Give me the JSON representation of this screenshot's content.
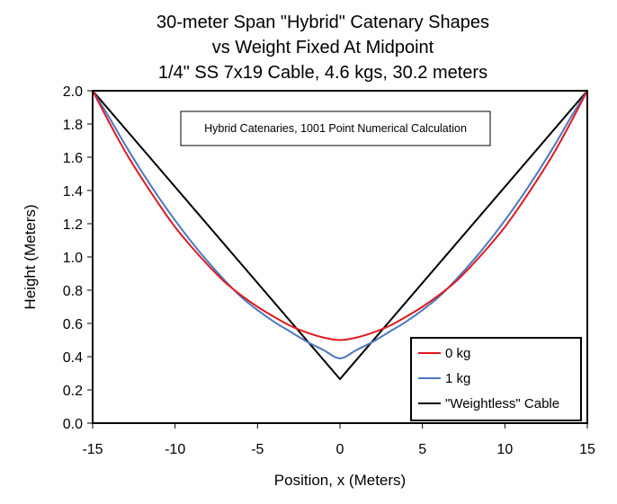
{
  "chart_data": {
    "type": "line",
    "title_lines": [
      "30-meter Span \"Hybrid\" Catenary Shapes",
      "vs Weight Fixed At Midpoint",
      "1/4\" SS 7x19 Cable, 4.6 kgs, 30.2 meters"
    ],
    "xlabel": "Position, x (Meters)",
    "ylabel": "Height (Meters)",
    "xlim": [
      -15,
      15
    ],
    "ylim": [
      0,
      2.0
    ],
    "x_ticks": [
      "-15",
      "-10",
      "-5",
      "0",
      "5",
      "10",
      "15"
    ],
    "y_ticks": [
      "0.0",
      "0.2",
      "0.4",
      "0.6",
      "0.8",
      "1.0",
      "1.2",
      "1.4",
      "1.6",
      "1.8",
      "2.0"
    ],
    "grid": false,
    "annotation": "Hybrid Catenaries, 1001 Point Numerical Calculation",
    "legend_position": "bottom-right",
    "series": [
      {
        "name": "0 kg",
        "color": "#e0191c",
        "x": [
          -15,
          -14,
          -13,
          -12,
          -11,
          -10,
          -9,
          -8,
          -7,
          -6,
          -5,
          -4,
          -3,
          -2,
          -1,
          0,
          1,
          2,
          3,
          4,
          5,
          6,
          7,
          8,
          9,
          10,
          11,
          12,
          13,
          14,
          15
        ],
        "y": [
          2.0,
          1.81,
          1.63,
          1.47,
          1.32,
          1.18,
          1.06,
          0.95,
          0.85,
          0.77,
          0.7,
          0.64,
          0.585,
          0.545,
          0.515,
          0.5,
          0.515,
          0.545,
          0.585,
          0.64,
          0.7,
          0.77,
          0.85,
          0.95,
          1.06,
          1.18,
          1.32,
          1.47,
          1.63,
          1.81,
          2.0
        ]
      },
      {
        "name": "1 kg",
        "color": "#4a78c2",
        "x": [
          -15,
          -14,
          -13,
          -12,
          -11,
          -10,
          -9,
          -8,
          -7,
          -6,
          -5,
          -4,
          -3,
          -2,
          -1,
          0,
          1,
          2,
          3,
          4,
          5,
          6,
          7,
          8,
          9,
          10,
          11,
          12,
          13,
          14,
          15
        ],
        "y": [
          2.0,
          1.84,
          1.67,
          1.51,
          1.36,
          1.22,
          1.09,
          0.97,
          0.86,
          0.76,
          0.68,
          0.61,
          0.55,
          0.49,
          0.44,
          0.39,
          0.44,
          0.49,
          0.55,
          0.61,
          0.68,
          0.76,
          0.86,
          0.97,
          1.09,
          1.22,
          1.36,
          1.51,
          1.67,
          1.84,
          2.0
        ]
      },
      {
        "name": "\"Weightless\" Cable",
        "color": "#000000",
        "x": [
          -15,
          0,
          15
        ],
        "y": [
          2.0,
          0.265,
          2.0
        ]
      }
    ]
  }
}
